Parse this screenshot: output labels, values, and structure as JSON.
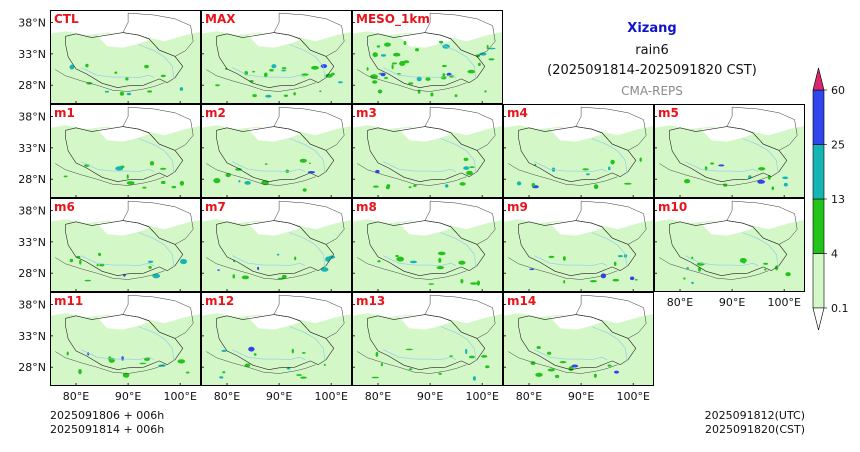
{
  "header": {
    "region": "Xizang",
    "variable": "rain6",
    "period": "(2025091814-2025091820 CST)",
    "source": "CMA-REPS"
  },
  "footer": {
    "left_line1": "2025091806  +  006h",
    "left_line2": "2025091814  +  006h",
    "right_line1": "2025091812(UTC)",
    "right_line2": "2025091820(CST)"
  },
  "chart_data": {
    "type": "heatmap",
    "layout": "small-multiples map grid",
    "panels": [
      {
        "label": "CTL",
        "row": 0,
        "col": 0
      },
      {
        "label": "MAX",
        "row": 0,
        "col": 1
      },
      {
        "label": "MESO_1km",
        "row": 0,
        "col": 2
      },
      {
        "label": "m1",
        "row": 1,
        "col": 0
      },
      {
        "label": "m2",
        "row": 1,
        "col": 1
      },
      {
        "label": "m3",
        "row": 1,
        "col": 2
      },
      {
        "label": "m4",
        "row": 1,
        "col": 3
      },
      {
        "label": "m5",
        "row": 1,
        "col": 4
      },
      {
        "label": "m6",
        "row": 2,
        "col": 0
      },
      {
        "label": "m7",
        "row": 2,
        "col": 1
      },
      {
        "label": "m8",
        "row": 2,
        "col": 2
      },
      {
        "label": "m9",
        "row": 2,
        "col": 3
      },
      {
        "label": "m10",
        "row": 2,
        "col": 4
      },
      {
        "label": "m11",
        "row": 3,
        "col": 0
      },
      {
        "label": "m12",
        "row": 3,
        "col": 1
      },
      {
        "label": "m13",
        "row": 3,
        "col": 2
      },
      {
        "label": "m14",
        "row": 3,
        "col": 3
      }
    ],
    "x_ticks": [
      "80°E",
      "90°E",
      "100°E"
    ],
    "x_tick_values": [
      80,
      90,
      100
    ],
    "y_ticks": [
      "38°N",
      "33°N",
      "28°N"
    ],
    "y_tick_values": [
      38,
      33,
      28
    ],
    "xlim": [
      75,
      104
    ],
    "ylim": [
      25,
      40
    ],
    "colorbar": {
      "levels": [
        "0.1",
        "4",
        "13",
        "25",
        "60"
      ],
      "colors": [
        "#d4f7c8",
        "#22c41a",
        "#14b5b5",
        "#2f46ee",
        "#d9276b"
      ],
      "extend": "both"
    }
  }
}
